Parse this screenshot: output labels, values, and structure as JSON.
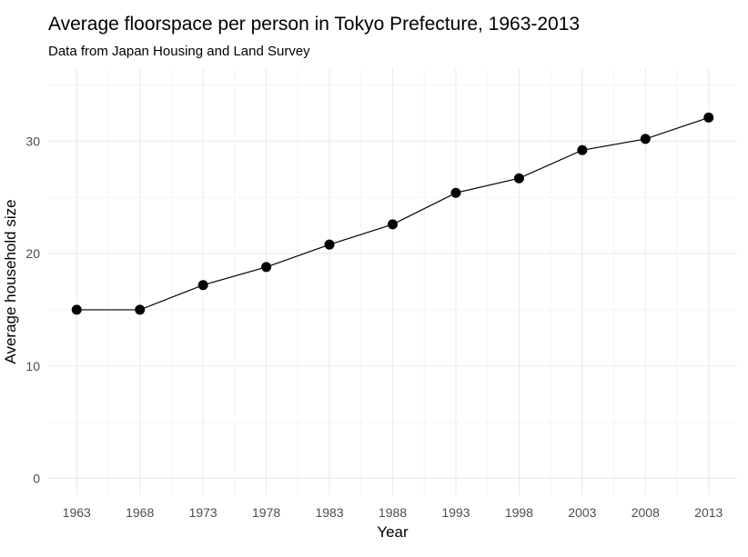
{
  "chart_data": {
    "type": "line",
    "title": "Average floorspace per person in Tokyo Prefecture, 1963-2013",
    "subtitle": "Data from Japan Housing and Land Survey",
    "xlabel": "Year",
    "ylabel": "Average household size",
    "x": [
      1963,
      1968,
      1973,
      1978,
      1983,
      1988,
      1993,
      1998,
      2003,
      2008,
      2013
    ],
    "x_tick_labels": [
      "1963",
      "1968",
      "1973",
      "1978",
      "1983",
      "1988",
      "1993",
      "1998",
      "2003",
      "2008",
      "2013"
    ],
    "series": [
      {
        "values": [
          15.0,
          15.0,
          17.2,
          18.8,
          20.8,
          22.6,
          25.4,
          26.7,
          29.2,
          30.2,
          32.1
        ]
      }
    ],
    "y_ticks": [
      0,
      10,
      20,
      30
    ],
    "y_tick_labels": [
      "0",
      "10",
      "20",
      "30"
    ],
    "ylim": [
      -1.5,
      36.5
    ],
    "grid": true,
    "legend": "none",
    "colors": {
      "line": "#000000",
      "point": "#000000",
      "grid_major": "#ebebeb",
      "grid_minor": "#f5f5f5",
      "tick_text": "#4d4d4d"
    }
  }
}
